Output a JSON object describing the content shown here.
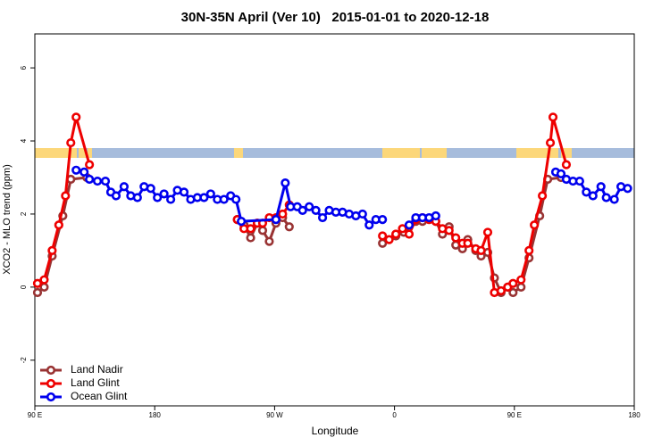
{
  "chart_data": {
    "type": "line",
    "title": "30N-35N April (Ver 10)   2015-01-01 to 2020-12-18",
    "xlabel": "Longitude",
    "ylabel": "XCO2 - MLO trend (ppm)",
    "xlim": [
      90,
      540
    ],
    "ylim": [
      -3.25,
      6.93
    ],
    "xticks": [
      {
        "value": 90,
        "label": "90 E"
      },
      180,
      {
        "value": 270,
        "label": "90 W"
      },
      {
        "value": 360,
        "label": "0"
      },
      {
        "value": 450,
        "label": "90 E"
      },
      {
        "value": 540,
        "label": "180"
      }
    ],
    "yticks": [
      -2,
      0,
      2,
      4,
      6
    ],
    "legend": "bottom-left",
    "series": [
      {
        "name": "Land Nadir",
        "color": "#993333",
        "x": [
          92,
          97,
          103,
          111,
          117,
          129,
          null,
          242,
          247,
          252,
          257,
          261,
          266,
          271,
          276,
          281,
          null,
          351,
          361,
          367,
          376,
          381,
          391,
          396,
          401,
          406,
          411,
          415,
          421,
          425,
          430,
          435,
          440,
          445,
          449,
          455,
          461,
          469,
          475,
          485
        ],
        "values": [
          -0.15,
          0.0,
          0.85,
          1.95,
          2.95,
          3.0,
          null,
          1.85,
          1.7,
          1.35,
          1.75,
          1.55,
          1.25,
          1.75,
          1.9,
          1.65,
          null,
          1.2,
          1.4,
          1.5,
          1.8,
          1.8,
          1.8,
          1.45,
          1.65,
          1.15,
          1.05,
          1.3,
          1.0,
          0.85,
          0.95,
          0.25,
          -0.15,
          0.0,
          -0.15,
          0.0,
          0.8,
          1.95,
          2.95,
          3.0
        ]
      },
      {
        "name": "Land Glint",
        "color": "#ee0000",
        "x": [
          92,
          97,
          103,
          108,
          113,
          117,
          121,
          131,
          null,
          242,
          247,
          252,
          257,
          261,
          266,
          271,
          276,
          281,
          null,
          351,
          356,
          361,
          366,
          371,
          376,
          381,
          386,
          391,
          396,
          401,
          406,
          411,
          415,
          421,
          425,
          430,
          435,
          440,
          445,
          449,
          455,
          461,
          465,
          471,
          477,
          479,
          489
        ],
        "values": [
          0.1,
          0.2,
          1.0,
          1.7,
          2.5,
          3.95,
          4.65,
          3.35,
          null,
          1.85,
          1.6,
          1.6,
          1.75,
          1.75,
          1.9,
          1.9,
          2.0,
          2.25,
          null,
          1.4,
          1.3,
          1.45,
          1.6,
          1.45,
          1.85,
          1.9,
          1.85,
          1.8,
          1.6,
          1.55,
          1.35,
          1.2,
          1.2,
          1.05,
          1.0,
          1.5,
          -0.15,
          -0.1,
          0.0,
          0.1,
          0.2,
          1.0,
          1.7,
          2.5,
          3.95,
          4.65,
          3.35
        ]
      },
      {
        "name": "Ocean Glint",
        "color": "#0000ee",
        "x": [
          121,
          127,
          131,
          137,
          143,
          147,
          151,
          157,
          162,
          167,
          172,
          177,
          182,
          187,
          192,
          197,
          202,
          207,
          212,
          217,
          222,
          227,
          232,
          237,
          241,
          245,
          271,
          278,
          282,
          287,
          291,
          296,
          301,
          306,
          311,
          316,
          321,
          326,
          331,
          336,
          341,
          346,
          351,
          null,
          371,
          376,
          381,
          386,
          391,
          null,
          481,
          485,
          489,
          494,
          499,
          504,
          509,
          515,
          519,
          525,
          530,
          535
        ],
        "values": [
          3.2,
          3.15,
          2.95,
          2.9,
          2.9,
          2.6,
          2.5,
          2.75,
          2.5,
          2.45,
          2.75,
          2.7,
          2.45,
          2.55,
          2.4,
          2.65,
          2.6,
          2.4,
          2.45,
          2.45,
          2.55,
          2.4,
          2.4,
          2.5,
          2.4,
          1.8,
          1.85,
          2.85,
          2.2,
          2.2,
          2.1,
          2.2,
          2.1,
          1.9,
          2.1,
          2.05,
          2.05,
          2.0,
          1.95,
          2.0,
          1.7,
          1.85,
          1.85,
          null,
          1.7,
          1.9,
          1.9,
          1.9,
          1.95,
          null,
          3.15,
          3.1,
          2.95,
          2.9,
          2.9,
          2.6,
          2.5,
          2.75,
          2.45,
          2.4,
          2.75,
          2.7
        ]
      }
    ]
  }
}
